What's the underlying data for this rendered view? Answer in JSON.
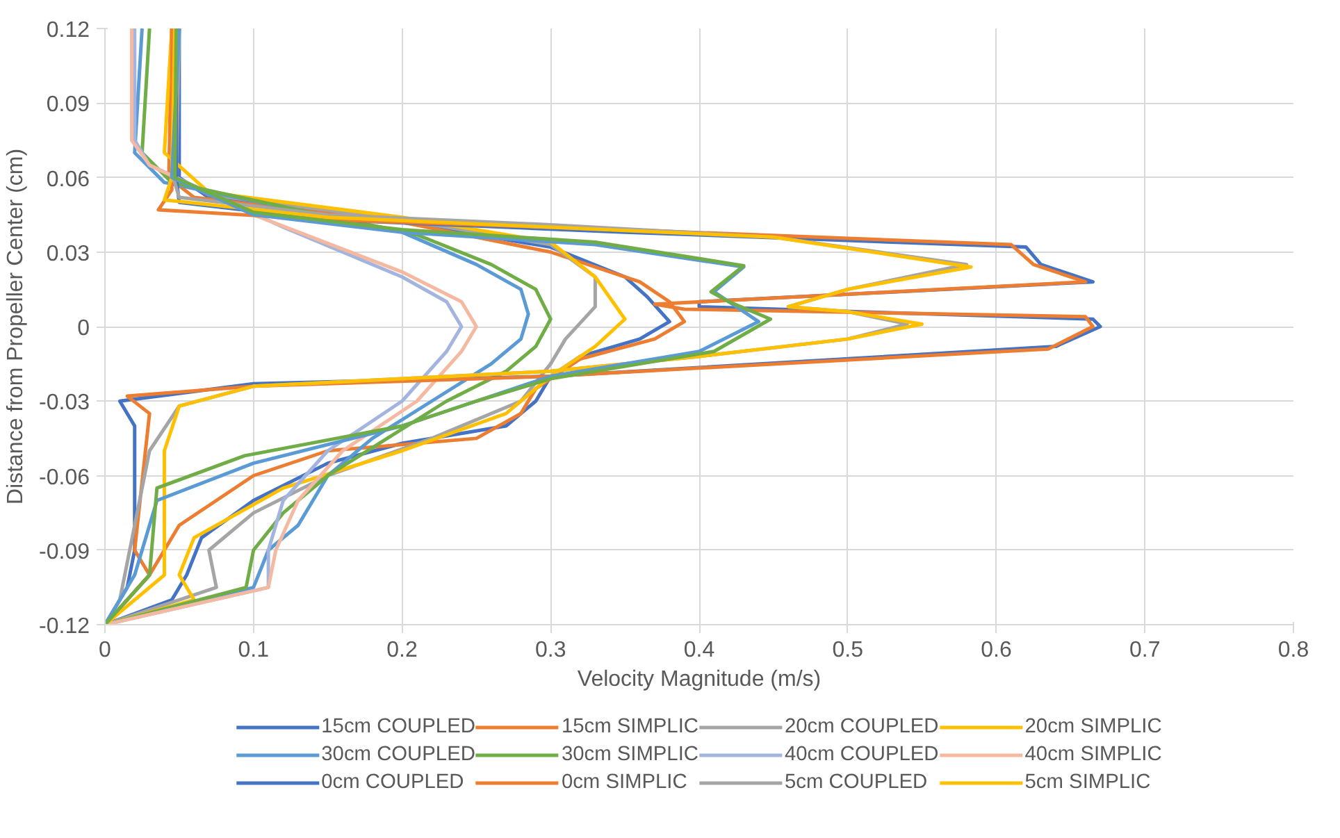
{
  "chart_data": {
    "type": "line",
    "xlabel": "Velocity Magnitude (m/s)",
    "ylabel": "Distance from Propeller Center (cm)",
    "xlim": [
      0,
      0.8
    ],
    "xticks": [
      0,
      0.1,
      0.2,
      0.3,
      0.4,
      0.5,
      0.6,
      0.7,
      0.8
    ],
    "ylim": [
      -0.12,
      0.12
    ],
    "yticks": [
      -0.12,
      -0.09,
      -0.06,
      -0.03,
      0,
      0.03,
      0.06,
      0.09,
      0.12
    ],
    "grid": true,
    "legend": "bottom",
    "marker": "none",
    "line_style": "solid",
    "series": [
      {
        "name": "15cm COUPLED",
        "color": "#4472c4",
        "x": [
          0.05,
          0.05,
          0.07,
          0.2,
          0.3,
          0.35,
          0.365,
          0.38,
          0.36,
          0.32,
          0.3,
          0.29,
          0.27,
          0.2,
          0.15,
          0.1,
          0.065,
          0.055,
          0.045,
          0
        ],
        "values": [
          0.12,
          0.06,
          0.052,
          0.042,
          0.032,
          0.02,
          0.012,
          0.002,
          -0.005,
          -0.012,
          -0.02,
          -0.03,
          -0.04,
          -0.047,
          -0.055,
          -0.07,
          -0.085,
          -0.1,
          -0.11,
          -0.12
        ]
      },
      {
        "name": "15cm SIMPLIC",
        "color": "#ed7d31",
        "x": [
          0.045,
          0.043,
          0.06,
          0.2,
          0.3,
          0.36,
          0.38,
          0.39,
          0.37,
          0.32,
          0.29,
          0.28,
          0.25,
          0.15,
          0.1,
          0.05,
          0.03,
          0
        ],
        "values": [
          0.12,
          0.06,
          0.052,
          0.042,
          0.03,
          0.018,
          0.01,
          0.002,
          -0.005,
          -0.013,
          -0.025,
          -0.035,
          -0.045,
          -0.05,
          -0.06,
          -0.08,
          -0.1,
          -0.12
        ]
      },
      {
        "name": "20cm COUPLED",
        "color": "#a5a5a5",
        "x": [
          0.05,
          0.048,
          0.07,
          0.2,
          0.3,
          0.33,
          0.33,
          0.31,
          0.3,
          0.28,
          0.22,
          0.15,
          0.1,
          0.07,
          0.075,
          0
        ],
        "values": [
          0.12,
          0.06,
          0.053,
          0.043,
          0.033,
          0.02,
          0.008,
          -0.005,
          -0.015,
          -0.03,
          -0.045,
          -0.06,
          -0.075,
          -0.09,
          -0.105,
          -0.12
        ]
      },
      {
        "name": "20cm SIMPLIC",
        "color": "#ffc000",
        "x": [
          0.045,
          0.04,
          0.07,
          0.2,
          0.3,
          0.33,
          0.35,
          0.33,
          0.3,
          0.27,
          0.2,
          0.12,
          0.06,
          0.05,
          0.06,
          0
        ],
        "values": [
          0.12,
          0.07,
          0.054,
          0.044,
          0.034,
          0.02,
          0.003,
          -0.008,
          -0.02,
          -0.035,
          -0.05,
          -0.065,
          -0.085,
          -0.1,
          -0.11,
          -0.12
        ]
      },
      {
        "name": "30cm COUPLED",
        "color": "#5b9bd5",
        "x": [
          0.025,
          0.02,
          0.04,
          0.12,
          0.2,
          0.25,
          0.28,
          0.285,
          0.28,
          0.26,
          0.22,
          0.18,
          0.15,
          0.13,
          0.11,
          0.1,
          0
        ],
        "values": [
          0.12,
          0.07,
          0.058,
          0.048,
          0.038,
          0.025,
          0.015,
          0.005,
          -0.005,
          -0.015,
          -0.03,
          -0.045,
          -0.06,
          -0.08,
          -0.09,
          -0.105,
          -0.12
        ]
      },
      {
        "name": "30cm SIMPLIC",
        "color": "#70ad47",
        "x": [
          0.03,
          0.025,
          0.045,
          0.13,
          0.21,
          0.26,
          0.29,
          0.3,
          0.29,
          0.27,
          0.23,
          0.19,
          0.15,
          0.12,
          0.1,
          0.095,
          0
        ],
        "values": [
          0.12,
          0.07,
          0.058,
          0.047,
          0.037,
          0.025,
          0.015,
          0.003,
          -0.008,
          -0.018,
          -0.03,
          -0.045,
          -0.06,
          -0.075,
          -0.09,
          -0.105,
          -0.12
        ]
      },
      {
        "name": "40cm COUPLED",
        "color": "#a3b5de",
        "x": [
          0.02,
          0.02,
          0.03,
          0.12,
          0.2,
          0.23,
          0.24,
          0.23,
          0.2,
          0.15,
          0.12,
          0.11,
          0.11,
          0
        ],
        "values": [
          0.12,
          0.075,
          0.065,
          0.04,
          0.02,
          0.01,
          0,
          -0.01,
          -0.03,
          -0.05,
          -0.07,
          -0.09,
          -0.105,
          -0.12
        ]
      },
      {
        "name": "40cm SIMPLIC",
        "color": "#f4b9a0",
        "x": [
          0.018,
          0.018,
          0.03,
          0.1,
          0.2,
          0.24,
          0.25,
          0.24,
          0.21,
          0.16,
          0.13,
          0.115,
          0.11,
          0
        ],
        "values": [
          0.12,
          0.075,
          0.065,
          0.045,
          0.022,
          0.01,
          0,
          -0.01,
          -0.03,
          -0.05,
          -0.07,
          -0.09,
          -0.105,
          -0.12
        ]
      },
      {
        "name": "0cm COUPLED",
        "color": "#4472c4",
        "x": [
          0.048,
          0.048,
          0.05,
          0.15,
          0.35,
          0.62,
          0.63,
          0.665,
          0.4,
          0.4,
          0.665,
          0.67,
          0.64,
          0.3,
          0.1,
          0.01,
          0.02,
          0.02,
          0.015,
          0
        ],
        "values": [
          0.12,
          0.06,
          0.05,
          0.043,
          0.038,
          0.032,
          0.025,
          0.018,
          0.01,
          0.008,
          0.003,
          0,
          -0.008,
          -0.02,
          -0.023,
          -0.03,
          -0.04,
          -0.09,
          -0.105,
          -0.12
        ]
      },
      {
        "name": "0cm SIMPLIC",
        "color": "#ed7d31",
        "x": [
          0.045,
          0.045,
          0.036,
          0.15,
          0.35,
          0.61,
          0.625,
          0.66,
          0.37,
          0.39,
          0.66,
          0.665,
          0.635,
          0.3,
          0.1,
          0.015,
          0.03,
          0.02,
          0.03,
          0
        ],
        "values": [
          0.12,
          0.055,
          0.047,
          0.043,
          0.039,
          0.033,
          0.025,
          0.018,
          0.009,
          0.007,
          0.004,
          0,
          -0.009,
          -0.02,
          -0.024,
          -0.028,
          -0.035,
          -0.09,
          -0.1,
          -0.12
        ]
      },
      {
        "name": "5cm COUPLED",
        "color": "#a5a5a5",
        "x": [
          0.048,
          0.046,
          0.05,
          0.15,
          0.3,
          0.45,
          0.58,
          0.5,
          0.46,
          0.5,
          0.54,
          0.5,
          0.4,
          0.3,
          0.1,
          0.05,
          0.03,
          0.02,
          0.01,
          0
        ],
        "values": [
          0.12,
          0.06,
          0.052,
          0.045,
          0.041,
          0.036,
          0.025,
          0.015,
          0.008,
          0.006,
          0.001,
          -0.005,
          -0.012,
          -0.018,
          -0.024,
          -0.032,
          -0.05,
          -0.08,
          -0.11,
          -0.12
        ]
      },
      {
        "name": "5cm SIMPLIC",
        "color": "#ffc000",
        "x": [
          0.047,
          0.045,
          0.04,
          0.15,
          0.3,
          0.45,
          0.583,
          0.5,
          0.46,
          0.5,
          0.55,
          0.5,
          0.4,
          0.3,
          0.1,
          0.05,
          0.04,
          0.04,
          0
        ],
        "values": [
          0.12,
          0.06,
          0.051,
          0.044,
          0.04,
          0.036,
          0.024,
          0.015,
          0.008,
          0.006,
          0.001,
          -0.005,
          -0.012,
          -0.018,
          -0.024,
          -0.032,
          -0.05,
          -0.1,
          -0.12
        ]
      },
      {
        "color": "#5b9bd5",
        "x": [
          0.05,
          0.045,
          0.1,
          0.2,
          0.33,
          0.43,
          0.41,
          0.42,
          0.44,
          0.4,
          0.3,
          0.25,
          0.2,
          0.1,
          0.035,
          0.02,
          0
        ],
        "values": [
          0.12,
          0.06,
          0.045,
          0.038,
          0.033,
          0.024,
          0.014,
          0.01,
          0.002,
          -0.01,
          -0.02,
          -0.03,
          -0.04,
          -0.055,
          -0.07,
          -0.1,
          -0.12
        ]
      },
      {
        "color": "#70ad47",
        "x": [
          0.048,
          0.047,
          0.1,
          0.2,
          0.33,
          0.43,
          0.408,
          0.42,
          0.448,
          0.41,
          0.3,
          0.25,
          0.2,
          0.094,
          0.035,
          0.03,
          0
        ],
        "values": [
          0.12,
          0.06,
          0.046,
          0.039,
          0.034,
          0.0245,
          0.014,
          0.01,
          0.003,
          -0.01,
          -0.021,
          -0.03,
          -0.04,
          -0.052,
          -0.065,
          -0.1,
          -0.12
        ]
      }
    ]
  }
}
